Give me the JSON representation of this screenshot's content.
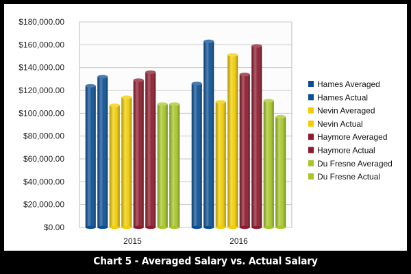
{
  "chart_data": {
    "type": "bar",
    "title": "Chart 5 - Averaged Salary vs. Actual Salary",
    "xlabel": "",
    "ylabel": "",
    "ylim": [
      0,
      180000
    ],
    "y_ticks": [
      "$0.00",
      "$20,000.00",
      "$40,000.00",
      "$60,000.00",
      "$80,000.00",
      "$100,000.00",
      "$120,000.00",
      "$140,000.00",
      "$160,000.00",
      "$180,000.00"
    ],
    "categories": [
      "2015",
      "2016"
    ],
    "grid": true,
    "legend_position": "right",
    "series": [
      {
        "name": "Hames Averaged",
        "color": "#0a4f94",
        "values": [
          124000,
          126000
        ]
      },
      {
        "name": "Hames Actual",
        "color": "#0a4f94",
        "values": [
          132000,
          163000
        ]
      },
      {
        "name": "Nevin Averaged",
        "color": "#f2cd00",
        "values": [
          107000,
          110000
        ]
      },
      {
        "name": "Nevin Actual",
        "color": "#f2cd00",
        "values": [
          114000,
          151000
        ]
      },
      {
        "name": "Haymore Averaged",
        "color": "#8c1a2c",
        "values": [
          129000,
          134000
        ]
      },
      {
        "name": "Haymore Actual",
        "color": "#8c1a2c",
        "values": [
          136000,
          159000
        ]
      },
      {
        "name": "Du Fresne Averaged",
        "color": "#a6c726",
        "values": [
          108000,
          111000
        ]
      },
      {
        "name": "Du Fresne Actual",
        "color": "#a6c726",
        "values": [
          108000,
          97000
        ]
      }
    ]
  }
}
